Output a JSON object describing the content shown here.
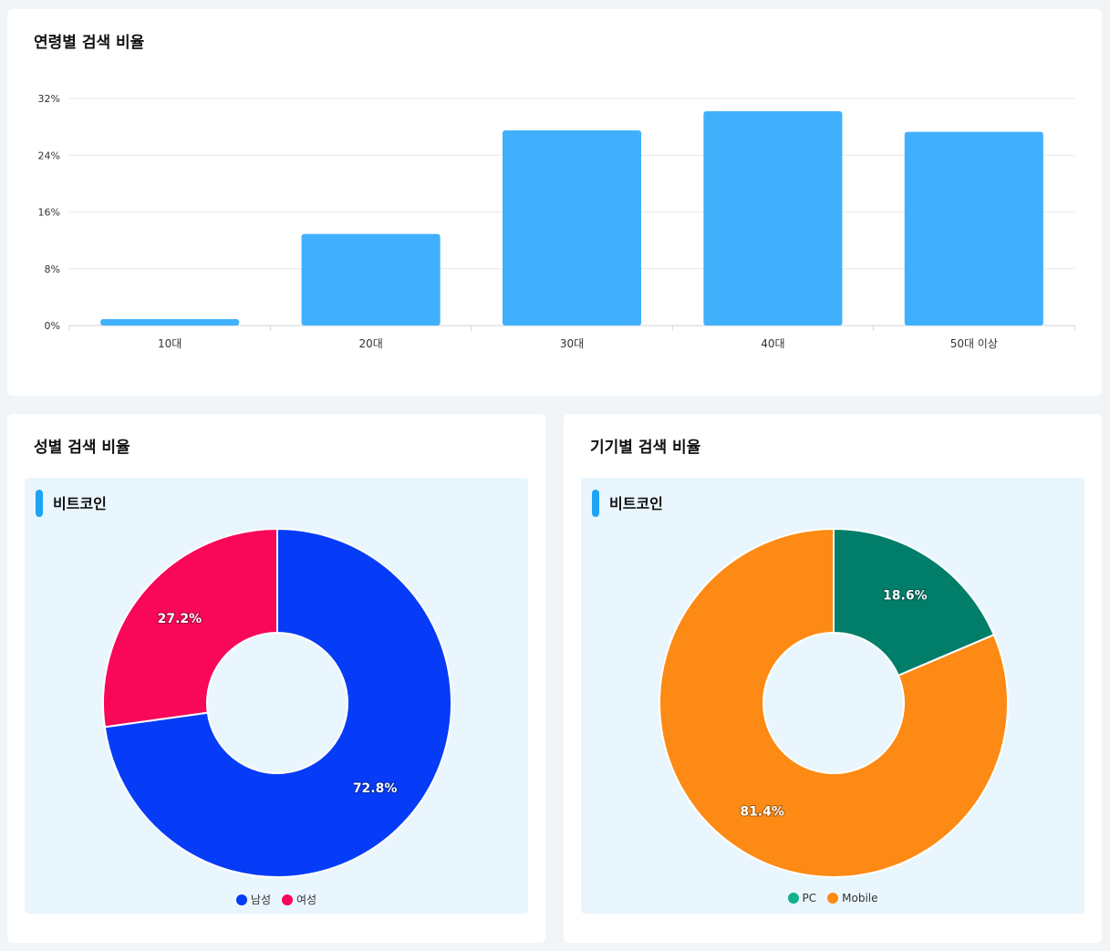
{
  "charts": {
    "age": {
      "title": "연령별 검색 비율"
    },
    "gender": {
      "title": "성별 검색 비율",
      "inner_title": "비트코인"
    },
    "device": {
      "title": "기기별 검색 비율",
      "inner_title": "비트코인"
    }
  },
  "chart_data": [
    {
      "type": "bar",
      "title": "연령별 검색 비율",
      "categories": [
        "10대",
        "20대",
        "30대",
        "40대",
        "50대 이상"
      ],
      "values": [
        0.9,
        12.9,
        27.5,
        30.2,
        27.3
      ],
      "ylim": [
        0,
        32
      ],
      "yticks": [
        "0%",
        "8%",
        "16%",
        "24%",
        "32%"
      ],
      "ytick_values": [
        0,
        8,
        16,
        24,
        32
      ],
      "grid": true,
      "color": "#40b0fd"
    },
    {
      "type": "pie",
      "title": "성별 검색 비율",
      "subtitle": "비트코인",
      "labels": [
        "남성",
        "여성"
      ],
      "values": [
        72.8,
        27.2
      ],
      "value_labels": [
        "72.8%",
        "27.2%"
      ],
      "colors": [
        "#063cf7",
        "#f90759"
      ],
      "donut": true,
      "legend": "bottom"
    },
    {
      "type": "pie",
      "title": "기기별 검색 비율",
      "subtitle": "비트코인",
      "labels": [
        "PC",
        "Mobile"
      ],
      "values": [
        18.6,
        81.4
      ],
      "value_labels": [
        "18.6%",
        "81.4%"
      ],
      "colors": [
        "#007e6a",
        "#fd8a14"
      ],
      "legend_colors": [
        "#12b08d",
        "#fd8a14"
      ],
      "donut": true,
      "legend": "bottom"
    }
  ]
}
